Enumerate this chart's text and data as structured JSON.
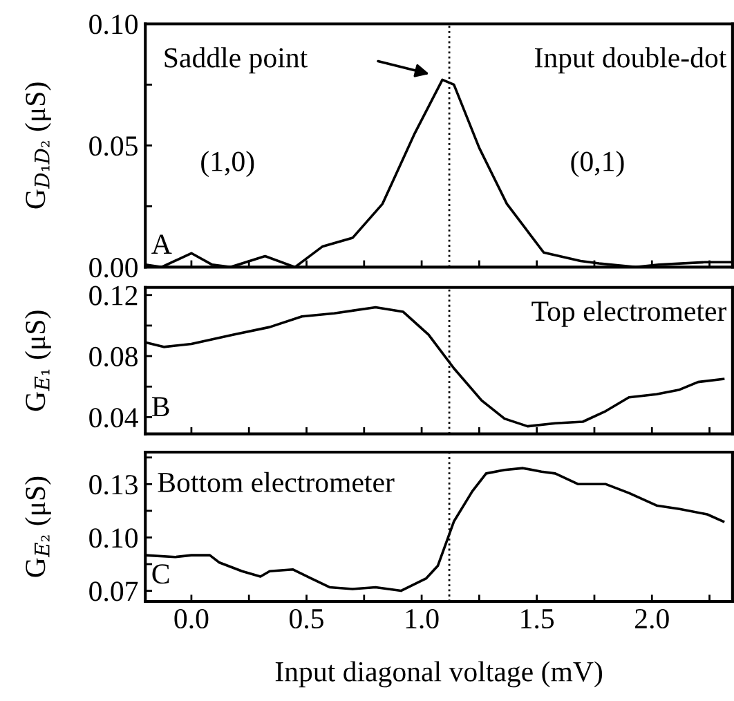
{
  "chart_data": [
    {
      "type": "line",
      "ylabel": "G$_{D₁D₂}$ (μS)",
      "xlim": [
        -0.2,
        2.35
      ],
      "ylim": [
        0,
        0.1
      ],
      "tick_labels": "y",
      "grid": false,
      "legend": false,
      "marker": "none",
      "line_style": "solid",
      "xticks": [
        {
          "value": 0,
          "label": null
        },
        {
          "value": 0.25,
          "label": null
        },
        {
          "value": 0.5,
          "label": null
        },
        {
          "value": 0.75,
          "label": null
        },
        {
          "value": 1,
          "label": null
        },
        {
          "value": 1.25,
          "label": null
        },
        {
          "value": 1.5,
          "label": null
        },
        {
          "value": 1.75,
          "label": null
        },
        {
          "value": 2,
          "label": null
        },
        {
          "value": 2.25,
          "label": null
        }
      ],
      "yticks": [
        {
          "value": 0,
          "label": "0.00"
        },
        {
          "value": 0.025,
          "label": null
        },
        {
          "value": 0.05,
          "label": "0.05"
        },
        {
          "value": 0.075,
          "label": null
        },
        {
          "value": 0.1,
          "label": "0.10"
        }
      ],
      "x": [
        -0.2,
        -0.13,
        0.0,
        0.09,
        0.17,
        0.32,
        0.45,
        0.57,
        0.7,
        0.83,
        0.97,
        1.09,
        1.14,
        1.25,
        1.37,
        1.53,
        1.69,
        1.77,
        1.93,
        2.03,
        2.23,
        2.35
      ],
      "series": [
        {
          "color": "#000000",
          "values": [
            0.001,
            0,
            0.0057,
            0.001,
            0,
            0.0045,
            0,
            0.0085,
            0.012,
            0.026,
            0.055,
            0.077,
            0.075,
            0.049,
            0.026,
            0.006,
            0.0025,
            0.0015,
            0,
            0.001,
            0.002,
            0.002
          ]
        }
      ],
      "ref_lines": [
        {
          "axis": "x",
          "value": 1.12,
          "color": "#000000",
          "line_style": "dotted"
        }
      ],
      "annotations": [
        "Saddle point",
        "Input double-dot",
        "(1,0)",
        "(0,1)",
        "A"
      ]
    },
    {
      "type": "line",
      "ylabel": "G$_{E₁}$ (μS)",
      "xlim": [
        -0.2,
        2.35
      ],
      "ylim": [
        0.029,
        0.125
      ],
      "tick_labels": "y",
      "grid": false,
      "legend": false,
      "marker": "none",
      "line_style": "solid",
      "xticks": [
        {
          "value": 0,
          "label": null
        },
        {
          "value": 0.25,
          "label": null
        },
        {
          "value": 0.5,
          "label": null
        },
        {
          "value": 0.75,
          "label": null
        },
        {
          "value": 1,
          "label": null
        },
        {
          "value": 1.25,
          "label": null
        },
        {
          "value": 1.5,
          "label": null
        },
        {
          "value": 1.75,
          "label": null
        },
        {
          "value": 2,
          "label": null
        },
        {
          "value": 2.25,
          "label": null
        }
      ],
      "yticks": [
        {
          "value": 0.04,
          "label": "0.04"
        },
        {
          "value": 0.06,
          "label": null
        },
        {
          "value": 0.08,
          "label": "0.08"
        },
        {
          "value": 0.1,
          "label": null
        },
        {
          "value": 0.12,
          "label": "0.12"
        }
      ],
      "x": [
        -0.2,
        -0.12,
        0.0,
        0.18,
        0.34,
        0.48,
        0.62,
        0.8,
        0.92,
        1.03,
        1.14,
        1.26,
        1.36,
        1.46,
        1.58,
        1.7,
        1.8,
        1.9,
        2.02,
        2.12,
        2.2,
        2.31
      ],
      "series": [
        {
          "color": "#000000",
          "values": [
            0.089,
            0.086,
            0.088,
            0.094,
            0.099,
            0.106,
            0.108,
            0.112,
            0.109,
            0.094,
            0.072,
            0.051,
            0.039,
            0.034,
            0.036,
            0.037,
            0.044,
            0.053,
            0.055,
            0.058,
            0.063,
            0.065
          ]
        }
      ],
      "ref_lines": [
        {
          "axis": "x",
          "value": 1.12,
          "color": "#000000",
          "line_style": "dotted"
        }
      ],
      "annotations": [
        "Top electrometer",
        "B"
      ]
    },
    {
      "type": "line",
      "ylabel": "G$_{E₂}$ (μS)",
      "xlabel": "Input diagonal voltage (mV)",
      "xlim": [
        -0.2,
        2.35
      ],
      "ylim": [
        0.064,
        0.148
      ],
      "grid": false,
      "legend": false,
      "marker": "none",
      "line_style": "solid",
      "xticks": [
        {
          "value": 0,
          "label": "0.0"
        },
        {
          "value": 0.25,
          "label": null
        },
        {
          "value": 0.5,
          "label": "0.5"
        },
        {
          "value": 0.75,
          "label": null
        },
        {
          "value": 1,
          "label": "1.0"
        },
        {
          "value": 1.25,
          "label": null
        },
        {
          "value": 1.5,
          "label": "1.5"
        },
        {
          "value": 1.75,
          "label": null
        },
        {
          "value": 2,
          "label": "2.0"
        },
        {
          "value": 2.25,
          "label": null
        }
      ],
      "yticks": [
        {
          "value": 0.07,
          "label": "0.07"
        },
        {
          "value": 0.085,
          "label": null
        },
        {
          "value": 0.1,
          "label": "0.10"
        },
        {
          "value": 0.115,
          "label": null
        },
        {
          "value": 0.13,
          "label": "0.13"
        },
        {
          "value": 0.145,
          "label": null
        }
      ],
      "x": [
        -0.2,
        -0.07,
        0.0,
        0.08,
        0.12,
        0.22,
        0.3,
        0.34,
        0.44,
        0.52,
        0.6,
        0.7,
        0.8,
        0.91,
        1.02,
        1.07,
        1.14,
        1.22,
        1.28,
        1.36,
        1.44,
        1.52,
        1.58,
        1.68,
        1.8,
        1.9,
        2.02,
        2.12,
        2.24,
        2.31
      ],
      "series": [
        {
          "color": "#000000",
          "values": [
            0.09,
            0.089,
            0.09,
            0.09,
            0.086,
            0.081,
            0.078,
            0.081,
            0.082,
            0.077,
            0.072,
            0.071,
            0.072,
            0.07,
            0.077,
            0.084,
            0.109,
            0.126,
            0.136,
            0.138,
            0.139,
            0.137,
            0.136,
            0.13,
            0.13,
            0.125,
            0.118,
            0.116,
            0.113,
            0.109
          ]
        }
      ],
      "ref_lines": [
        {
          "axis": "x",
          "value": 1.12,
          "color": "#000000",
          "line_style": "dotted"
        }
      ],
      "annotations": [
        "Bottom electrometer",
        "C"
      ]
    }
  ]
}
